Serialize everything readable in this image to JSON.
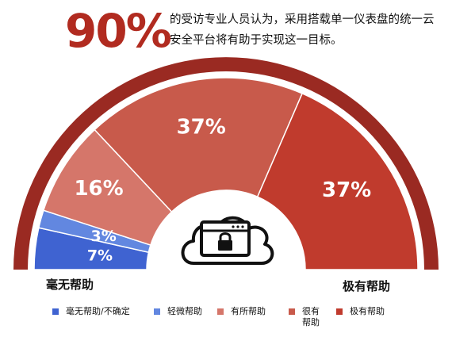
{
  "header": {
    "big_number": "90%",
    "caption": "的受访专业人员认为，采用搭载单一仪表盘的统一云安全平台将有助于实现这一目标。"
  },
  "chart_data": {
    "type": "semi-donut",
    "categories": [
      "毫无帮助/不确定",
      "轻微帮助",
      "有所帮助",
      "很有帮助",
      "极有帮助"
    ],
    "values": [
      7,
      3,
      16,
      37,
      37
    ],
    "value_labels": [
      "7%",
      "3%",
      "16%",
      "37%",
      "37%"
    ],
    "colors": [
      "#3f63d1",
      "#6287e0",
      "#d5766a",
      "#c85a4b",
      "#c03b2d"
    ],
    "scale_start_label": "毫无帮助",
    "scale_end_label": "极有帮助",
    "center_icon": "cloud-lock-icon",
    "outer_arc_color": "#9a2a22"
  },
  "legend": {
    "items": [
      {
        "label": "毫无帮助/不确定",
        "color": "#3f63d1"
      },
      {
        "label": "轻微帮助",
        "color": "#6287e0"
      },
      {
        "label": "有所帮助",
        "color": "#d5766a"
      },
      {
        "label": "很有\n帮助",
        "color": "#c85a4b"
      },
      {
        "label": "极有帮助",
        "color": "#c03b2d"
      }
    ]
  }
}
